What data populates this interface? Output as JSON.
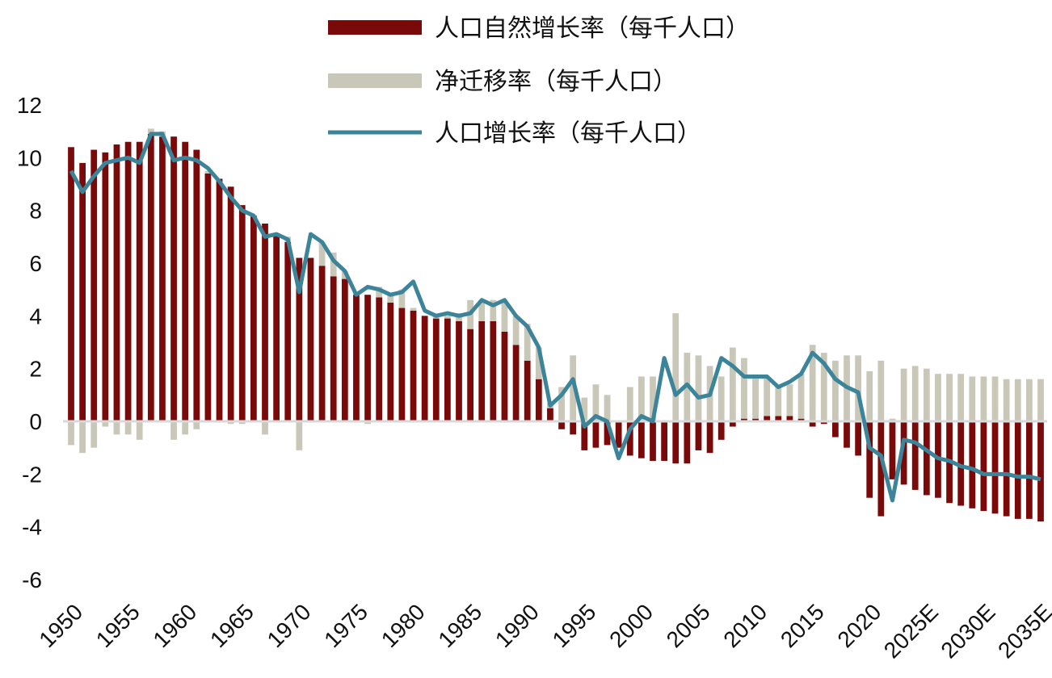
{
  "chart_data": {
    "type": "bar+line",
    "title": "",
    "xlabel": "",
    "ylabel": "",
    "ylim": [
      -6,
      12
    ],
    "yticks": [
      -6,
      -4,
      -2,
      0,
      2,
      4,
      6,
      8,
      10,
      12
    ],
    "legend_position": "top",
    "x": [
      1950,
      1951,
      1952,
      1953,
      1954,
      1955,
      1956,
      1957,
      1958,
      1959,
      1960,
      1961,
      1962,
      1963,
      1964,
      1965,
      1966,
      1967,
      1968,
      1969,
      1970,
      1971,
      1972,
      1973,
      1974,
      1975,
      1976,
      1977,
      1978,
      1979,
      1980,
      1981,
      1982,
      1983,
      1984,
      1985,
      1986,
      1987,
      1988,
      1989,
      1990,
      1991,
      1992,
      1993,
      1994,
      1995,
      1996,
      1997,
      1998,
      1999,
      2000,
      2001,
      2002,
      2003,
      2004,
      2005,
      2006,
      2007,
      2008,
      2009,
      2010,
      2011,
      2012,
      2013,
      2014,
      2015,
      2016,
      2017,
      2018,
      2019,
      2020,
      2021,
      2022,
      2023,
      2024,
      2025,
      2026,
      2027,
      2028,
      2029,
      2030,
      2031,
      2032,
      2033,
      2034,
      2035
    ],
    "tick_labels": [
      "1950",
      "1955",
      "1960",
      "1965",
      "1970",
      "1975",
      "1980",
      "1985",
      "1990",
      "1995",
      "2000",
      "2005",
      "2010",
      "2015",
      "2020",
      "2025E",
      "2030E",
      "2035E"
    ],
    "series": [
      {
        "name": "人口自然增长率（每千人口）",
        "type": "bar",
        "color": "#7a0a0a",
        "values": [
          10.4,
          9.8,
          10.3,
          10.2,
          10.5,
          10.6,
          10.6,
          10.9,
          10.8,
          10.8,
          10.6,
          10.3,
          9.4,
          9.2,
          8.9,
          8.2,
          7.8,
          7.5,
          7.1,
          6.8,
          6.2,
          6.2,
          5.9,
          5.5,
          5.4,
          4.8,
          4.8,
          4.7,
          4.5,
          4.3,
          4.2,
          4.0,
          3.9,
          3.9,
          3.8,
          3.5,
          3.8,
          3.8,
          3.4,
          2.9,
          2.3,
          1.6,
          0.5,
          -0.3,
          -0.5,
          -1.1,
          -1.0,
          -0.9,
          -1.0,
          -1.3,
          -1.4,
          -1.5,
          -1.5,
          -1.6,
          -1.6,
          -1.1,
          -1.2,
          -0.7,
          -0.2,
          0.1,
          0.1,
          0.2,
          0.2,
          0.2,
          0.1,
          -0.2,
          -0.1,
          -0.6,
          -1.0,
          -1.3,
          -2.9,
          -3.6,
          -2.2,
          -2.4,
          -2.6,
          -2.8,
          -2.9,
          -3.1,
          -3.2,
          -3.3,
          -3.4,
          -3.5,
          -3.6,
          -3.7,
          -3.7,
          -3.8
        ]
      },
      {
        "name": "净迁移率（每千人口）",
        "type": "bar",
        "color": "#c9c7b8",
        "values": [
          -0.9,
          -1.2,
          -1.0,
          -0.2,
          -0.5,
          -0.5,
          -0.7,
          0.2,
          0.2,
          -0.7,
          -0.5,
          -0.3,
          0.1,
          0.0,
          -0.1,
          -0.1,
          0.0,
          -0.5,
          0.0,
          0.2,
          -1.1,
          0.0,
          0.9,
          0.9,
          0.3,
          0.1,
          -0.1,
          0.4,
          0.3,
          0.7,
          0.1,
          0.0,
          0.1,
          0.1,
          0.3,
          1.1,
          0.8,
          0.8,
          1.1,
          1.1,
          1.4,
          1.2,
          0.2,
          1.3,
          2.5,
          0.9,
          1.4,
          1.0,
          0.0,
          1.3,
          1.7,
          1.7,
          0.0,
          4.1,
          2.6,
          2.5,
          2.1,
          1.7,
          2.8,
          2.3,
          1.6,
          1.5,
          1.1,
          1.2,
          1.7,
          2.9,
          2.6,
          2.3,
          2.5,
          2.5,
          1.9,
          2.3,
          0.1,
          2.0,
          2.1,
          2.0,
          1.8,
          1.8,
          1.8,
          1.7,
          1.7,
          1.7,
          1.6,
          1.6,
          1.6,
          1.6
        ]
      },
      {
        "name": "人口增长率（每千人口）",
        "type": "line",
        "color": "#3b8499",
        "values": [
          9.5,
          8.7,
          9.3,
          9.8,
          9.9,
          10.0,
          9.8,
          10.9,
          10.9,
          9.9,
          10.0,
          9.9,
          9.6,
          9.1,
          8.5,
          8.0,
          7.8,
          7.0,
          7.1,
          6.9,
          4.9,
          7.1,
          6.8,
          6.1,
          5.7,
          4.8,
          5.1,
          5.0,
          4.8,
          4.9,
          5.3,
          4.2,
          4.0,
          4.1,
          4.0,
          4.1,
          4.6,
          4.4,
          4.6,
          4.0,
          3.6,
          2.8,
          0.6,
          1.0,
          1.6,
          -0.2,
          0.2,
          0.0,
          -1.4,
          -0.3,
          0.2,
          0.0,
          2.4,
          1.0,
          1.4,
          0.9,
          1.0,
          2.4,
          2.1,
          1.7,
          1.7,
          1.7,
          1.3,
          1.5,
          1.8,
          2.6,
          2.2,
          1.6,
          1.3,
          1.1,
          -1.0,
          -1.3,
          -3.0,
          -0.7,
          -0.8,
          -1.1,
          -1.4,
          -1.5,
          -1.7,
          -1.8,
          -2.0,
          -2.0,
          -2.0,
          -2.1,
          -2.1,
          -2.2
        ]
      }
    ]
  }
}
